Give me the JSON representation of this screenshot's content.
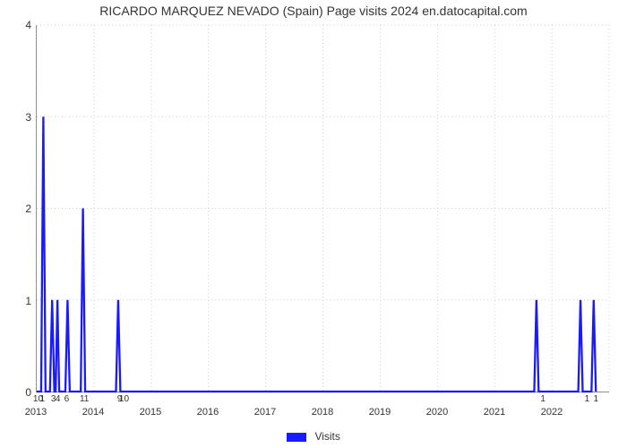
{
  "chart": {
    "type": "line",
    "title": "RICARDO MARQUEZ NEVADO (Spain) Page visits 2024 en.datocapital.com",
    "title_fontsize": 14,
    "background_color": "#ffffff",
    "grid_color": "#cccccc",
    "axis_color": "#888888",
    "line_color": "#1a1aff",
    "line_width": 2.3,
    "ylim": [
      0,
      4
    ],
    "xlim": [
      0,
      130
    ],
    "ytick_step": 1,
    "yticks": [
      0,
      1,
      2,
      3,
      4
    ],
    "x_year_ticks": [
      {
        "pos": 0,
        "label": "2013"
      },
      {
        "pos": 13,
        "label": "2014"
      },
      {
        "pos": 26,
        "label": "2015"
      },
      {
        "pos": 39,
        "label": "2016"
      },
      {
        "pos": 52,
        "label": "2017"
      },
      {
        "pos": 65,
        "label": "2018"
      },
      {
        "pos": 78,
        "label": "2019"
      },
      {
        "pos": 91,
        "label": "2020"
      },
      {
        "pos": 104,
        "label": "2021"
      },
      {
        "pos": 117,
        "label": "2022"
      }
    ],
    "x_minor_ticks": [
      {
        "pos": 0.5,
        "label": "10"
      },
      {
        "pos": 1.5,
        "label": "1"
      },
      {
        "pos": 4,
        "label": "3"
      },
      {
        "pos": 5,
        "label": "4"
      },
      {
        "pos": 7,
        "label": "6"
      },
      {
        "pos": 11,
        "label": "11"
      },
      {
        "pos": 19,
        "label": "9"
      },
      {
        "pos": 20,
        "label": "10"
      },
      {
        "pos": 115,
        "label": "1"
      },
      {
        "pos": 125,
        "label": "1"
      },
      {
        "pos": 127,
        "label": "1"
      }
    ],
    "legend_label": "Visits",
    "x_grid_positions": [
      0,
      13,
      26,
      39,
      52,
      65,
      78,
      91,
      104,
      117,
      130
    ],
    "series": [
      {
        "x": 0,
        "y": 0
      },
      {
        "x": 1,
        "y": 0
      },
      {
        "x": 1.5,
        "y": 3
      },
      {
        "x": 2,
        "y": 0
      },
      {
        "x": 3,
        "y": 0
      },
      {
        "x": 3.5,
        "y": 1
      },
      {
        "x": 4,
        "y": 0
      },
      {
        "x": 4.3,
        "y": 0
      },
      {
        "x": 4.7,
        "y": 1
      },
      {
        "x": 5.1,
        "y": 0
      },
      {
        "x": 6.5,
        "y": 0
      },
      {
        "x": 7,
        "y": 1
      },
      {
        "x": 7.5,
        "y": 0
      },
      {
        "x": 10,
        "y": 0
      },
      {
        "x": 10.5,
        "y": 2
      },
      {
        "x": 11,
        "y": 0
      },
      {
        "x": 18,
        "y": 0
      },
      {
        "x": 18.5,
        "y": 1
      },
      {
        "x": 19,
        "y": 0
      },
      {
        "x": 113,
        "y": 0
      },
      {
        "x": 113.5,
        "y": 1
      },
      {
        "x": 114,
        "y": 0
      },
      {
        "x": 123,
        "y": 0
      },
      {
        "x": 123.5,
        "y": 1
      },
      {
        "x": 124,
        "y": 0
      },
      {
        "x": 126,
        "y": 0
      },
      {
        "x": 126.5,
        "y": 1
      },
      {
        "x": 127,
        "y": 0
      }
    ]
  }
}
